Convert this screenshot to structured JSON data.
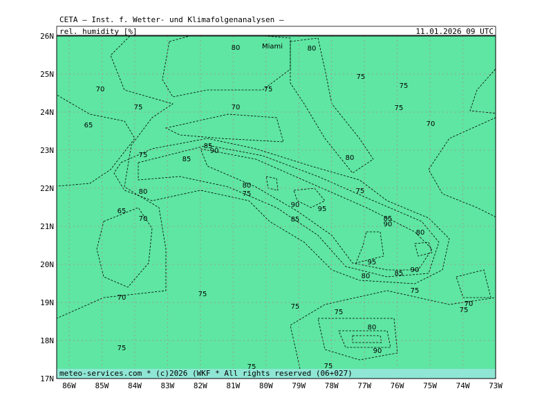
{
  "header": {
    "title": "CETA — Inst. f. Wetter- und Klimafolgenanalysen —",
    "parameter": "rel. humidity [%]",
    "valid_time": "11.01.2026 09 UTC"
  },
  "map": {
    "lat_labels": [
      "26N",
      "25N",
      "24N",
      "23N",
      "22N",
      "21N",
      "20N",
      "19N",
      "18N",
      "17N"
    ],
    "lon_labels": [
      "86W",
      "85W",
      "84W",
      "83W",
      "82W",
      "81W",
      "80W",
      "79W",
      "78W",
      "77W",
      "76W",
      "75W",
      "74W",
      "73W"
    ],
    "place_labels": [
      "Miami"
    ],
    "contour_labels": [
      "80",
      "80",
      "75",
      "75",
      "70",
      "75",
      "75",
      "70",
      "75",
      "70",
      "65",
      "85",
      "90",
      "75",
      "85",
      "80",
      "80",
      "80",
      "75",
      "75",
      "90",
      "95",
      "65",
      "70",
      "85",
      "85",
      "90",
      "80",
      "95",
      "90",
      "80",
      "85",
      "75",
      "70",
      "75",
      "75",
      "75",
      "70",
      "75",
      "80",
      "75",
      "90",
      "75",
      "75"
    ]
  },
  "footer": "meteo-services.com * (c)2026 (WKF * All rights reserved (06+027)"
}
